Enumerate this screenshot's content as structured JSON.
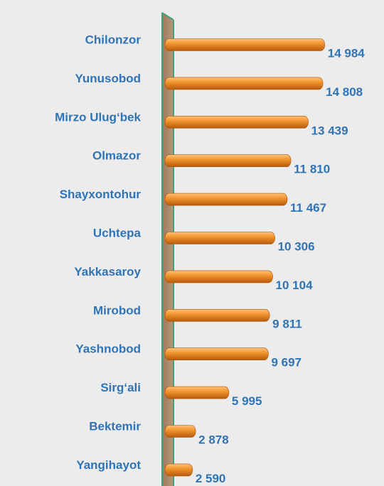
{
  "chart_data": {
    "type": "bar",
    "orientation": "horizontal",
    "categories": [
      "Chilonzor",
      "Yunusobod",
      "Mirzo Ulug‘bek",
      "Olmazor",
      "Shayxontohur",
      "Uchtepa",
      "Yakkasaroy",
      "Mirobod",
      "Yashnobod",
      "Sirg‘ali",
      "Bektemir",
      "Yangihayot"
    ],
    "values": [
      14984,
      14808,
      13439,
      11810,
      11467,
      10306,
      10104,
      9811,
      9697,
      5995,
      2878,
      2590
    ],
    "value_labels": [
      "14 984",
      "14 808",
      "13 439",
      "11 810",
      "11 467",
      "10 306",
      "10 104",
      "9 811",
      "9 697",
      "5 995",
      "2 878",
      "2 590"
    ],
    "color": "#f08a1e",
    "xlim": [
      0,
      15000
    ]
  }
}
